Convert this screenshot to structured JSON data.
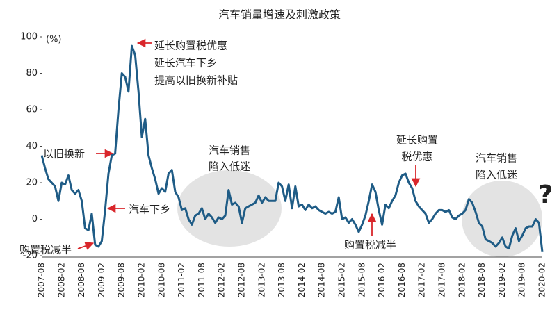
{
  "chart_data": {
    "type": "line",
    "title": "汽车销量增速及刺激政策",
    "y_label": "(%)",
    "categories": [
      "2007-08",
      null,
      null,
      null,
      null,
      null,
      "2008-02",
      null,
      null,
      null,
      null,
      null,
      "2008-08",
      null,
      null,
      null,
      null,
      null,
      "2009-02",
      null,
      null,
      null,
      null,
      null,
      "2009-08",
      null,
      null,
      null,
      null,
      null,
      "2010-02",
      null,
      null,
      null,
      null,
      null,
      "2010-08",
      null,
      null,
      null,
      null,
      null,
      "2011-02",
      null,
      null,
      null,
      null,
      null,
      "2011-08",
      null,
      null,
      null,
      null,
      null,
      "2012-02",
      null,
      null,
      null,
      null,
      null,
      "2012-08",
      null,
      null,
      null,
      null,
      null,
      "2013-02",
      null,
      null,
      null,
      null,
      null,
      "2013-08",
      null,
      null,
      null,
      null,
      null,
      "2014-02",
      null,
      null,
      null,
      null,
      null,
      "2014-08",
      null,
      null,
      null,
      null,
      null,
      "2015-02",
      null,
      null,
      null,
      null,
      null,
      "2015-08",
      null,
      null,
      null,
      null,
      null,
      "2016-02",
      null,
      null,
      null,
      null,
      null,
      "2016-08",
      null,
      null,
      null,
      null,
      null,
      "2017-02",
      null,
      null,
      null,
      null,
      null,
      "2017-08",
      null,
      null,
      null,
      null,
      null,
      "2018-02",
      null,
      null,
      null,
      null,
      null,
      "2018-08",
      null,
      null,
      null,
      null,
      null,
      "2019-02",
      null,
      null,
      null,
      null,
      null,
      "2019-08",
      null,
      null,
      null,
      null,
      null,
      "2020-02"
    ],
    "series": [
      {
        "name": "汽车销量增速",
        "color": "#1f5c86",
        "values": [
          35,
          28,
          22,
          20,
          18,
          10,
          20,
          19,
          24,
          16,
          14,
          16,
          10,
          -5,
          -6,
          3,
          -14,
          -15,
          -12,
          5,
          25,
          35,
          36,
          60,
          80,
          78,
          70,
          95,
          90,
          70,
          45,
          55,
          35,
          28,
          22,
          14,
          17,
          15,
          25,
          27,
          15,
          12,
          5,
          6,
          0,
          -3,
          2,
          3,
          6,
          0,
          3,
          1,
          -2,
          1,
          0,
          2,
          16,
          8,
          9,
          7,
          -2,
          6,
          7,
          8,
          9,
          13,
          9,
          12,
          10,
          10,
          10,
          20,
          18,
          10,
          19,
          6,
          18,
          7,
          8,
          5,
          8,
          6,
          7,
          5,
          4,
          3,
          4,
          3,
          4,
          12,
          0,
          1,
          -2,
          0,
          -3,
          -7,
          -3,
          2,
          10,
          19,
          15,
          5,
          -3,
          8,
          6,
          10,
          13,
          20,
          24,
          25,
          20,
          17,
          10,
          7,
          5,
          3,
          -2,
          0,
          3,
          5,
          5,
          4,
          5,
          1,
          0,
          2,
          3,
          5,
          11,
          9,
          4,
          -2,
          -4,
          -11,
          -12,
          -13,
          -15,
          -13,
          -10,
          -15,
          -16,
          -9,
          -5,
          -12,
          -9,
          -5,
          -4,
          -4,
          0,
          -2,
          -18
        ]
      }
    ],
    "ylim": [
      -20,
      100
    ],
    "yticks": [
      -20,
      0,
      20,
      40,
      60,
      80,
      100
    ],
    "annotations": [
      {
        "lines": [
          "以旧换新"
        ],
        "color": "#d9262b"
      },
      {
        "lines": [
          "汽车下乡"
        ],
        "color": "#d9262b"
      },
      {
        "lines": [
          "购置税减半"
        ],
        "color": "#d9262b"
      },
      {
        "lines": [
          "延长购置税优惠",
          "延长汽车下乡",
          "提高以旧换新补贴"
        ],
        "color": "#d9262b"
      },
      {
        "lines": [
          "汽车销售",
          "陷入低迷"
        ],
        "color": "#222222"
      },
      {
        "lines": [
          "延长购置",
          "税优惠"
        ],
        "color": "#d9262b"
      },
      {
        "lines": [
          "购置税减半"
        ],
        "color": "#d9262b"
      },
      {
        "lines": [
          "汽车销售",
          "陷入低迷"
        ],
        "color": "#222222"
      },
      {
        "lines": [
          "?"
        ],
        "color": "#d9262b"
      }
    ]
  }
}
